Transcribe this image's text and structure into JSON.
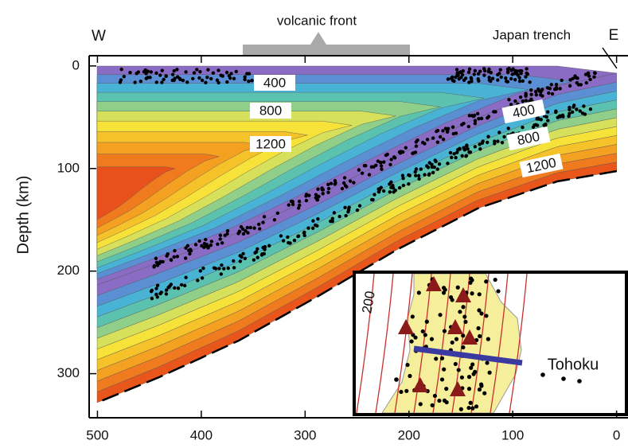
{
  "chart_data": {
    "type": "thermal-section",
    "x_label_left": "W",
    "x_label_right": "E",
    "annotations": {
      "volcanic_front": "volcanic front",
      "trench": "Japan trench"
    },
    "ylabel": "Depth (km)",
    "xlim": [
      508,
      -11
    ],
    "xticks": [
      500,
      400,
      300,
      200,
      100,
      0
    ],
    "ylim": [
      -10,
      343
    ],
    "yticks": [
      0,
      100,
      200,
      300
    ],
    "y_inverted": true,
    "contour_levels": [
      400,
      800,
      1200
    ],
    "inset": {
      "label": "Tohoku",
      "contour_label": 200
    }
  }
}
